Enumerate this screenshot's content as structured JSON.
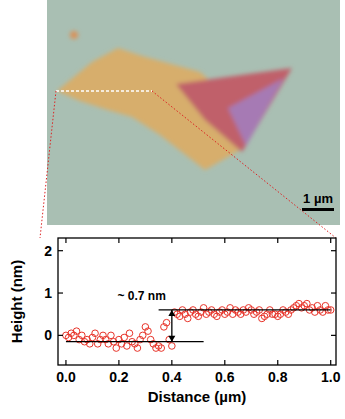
{
  "chart_data": {
    "type": "scatter",
    "xlabel": "Distance (µm)",
    "ylabel": "Height (nm)",
    "xlim": [
      -0.03,
      1.02
    ],
    "ylim": [
      -0.7,
      2.3
    ],
    "xticks": [
      {
        "value": 0,
        "label": "0.0"
      },
      0.2,
      0.4,
      0.6,
      0.8,
      {
        "value": 1,
        "label": "1.0"
      }
    ],
    "yticks": [
      0,
      1,
      2
    ],
    "color": "#e8342a",
    "marker": "open_circle",
    "x": [
      0.0,
      0.01,
      0.02,
      0.03,
      0.04,
      0.05,
      0.06,
      0.07,
      0.08,
      0.09,
      0.1,
      0.11,
      0.12,
      0.13,
      0.14,
      0.15,
      0.16,
      0.17,
      0.18,
      0.19,
      0.2,
      0.21,
      0.22,
      0.23,
      0.24,
      0.25,
      0.26,
      0.27,
      0.28,
      0.29,
      0.3,
      0.31,
      0.32,
      0.33,
      0.34,
      0.35,
      0.36,
      0.37,
      0.38,
      0.39,
      0.4,
      0.41,
      0.42,
      0.43,
      0.44,
      0.45,
      0.46,
      0.47,
      0.48,
      0.49,
      0.5,
      0.51,
      0.52,
      0.53,
      0.54,
      0.55,
      0.56,
      0.57,
      0.58,
      0.59,
      0.6,
      0.61,
      0.62,
      0.63,
      0.64,
      0.65,
      0.66,
      0.67,
      0.68,
      0.69,
      0.7,
      0.71,
      0.72,
      0.73,
      0.74,
      0.75,
      0.76,
      0.77,
      0.78,
      0.79,
      0.8,
      0.81,
      0.82,
      0.83,
      0.84,
      0.85,
      0.86,
      0.87,
      0.88,
      0.89,
      0.9,
      0.91,
      0.92,
      0.93,
      0.94,
      0.95,
      0.96,
      0.97,
      0.98,
      0.99,
      1.0
    ],
    "values": [
      0.0,
      -0.05,
      0.05,
      0.0,
      0.1,
      -0.1,
      0.0,
      -0.15,
      -0.1,
      -0.2,
      -0.05,
      0.05,
      -0.2,
      -0.1,
      0.0,
      -0.1,
      -0.2,
      0.0,
      -0.15,
      -0.3,
      -0.1,
      -0.2,
      -0.05,
      -0.25,
      0.05,
      -0.15,
      -0.2,
      -0.3,
      -0.1,
      0.0,
      0.2,
      0.1,
      -0.1,
      -0.2,
      -0.3,
      -0.25,
      -0.3,
      0.2,
      0.3,
      -0.1,
      -0.25,
      0.55,
      0.5,
      0.45,
      0.6,
      0.5,
      0.4,
      0.55,
      0.6,
      0.5,
      0.45,
      0.55,
      0.65,
      0.5,
      0.55,
      0.6,
      0.5,
      0.45,
      0.55,
      0.6,
      0.5,
      0.55,
      0.65,
      0.5,
      0.6,
      0.55,
      0.5,
      0.6,
      0.55,
      0.65,
      0.6,
      0.5,
      0.55,
      0.6,
      0.4,
      0.45,
      0.5,
      0.6,
      0.5,
      0.5,
      0.45,
      0.5,
      0.6,
      0.55,
      0.5,
      0.6,
      0.65,
      0.7,
      0.75,
      0.65,
      0.7,
      0.75,
      0.6,
      0.65,
      0.55,
      0.7,
      0.6,
      0.55,
      0.7,
      0.6,
      0.6
    ],
    "step_levels": [
      {
        "x": [
          0.0,
          0.52
        ],
        "y": -0.15
      },
      {
        "x": [
          0.35,
          1.0
        ],
        "y": 0.6
      }
    ],
    "step_arrow": {
      "x": 0.4,
      "y": [
        -0.15,
        0.6
      ],
      "label": "~ 0.7 nm"
    }
  },
  "micrograph": {
    "scale_bar_label": "1 µm"
  }
}
